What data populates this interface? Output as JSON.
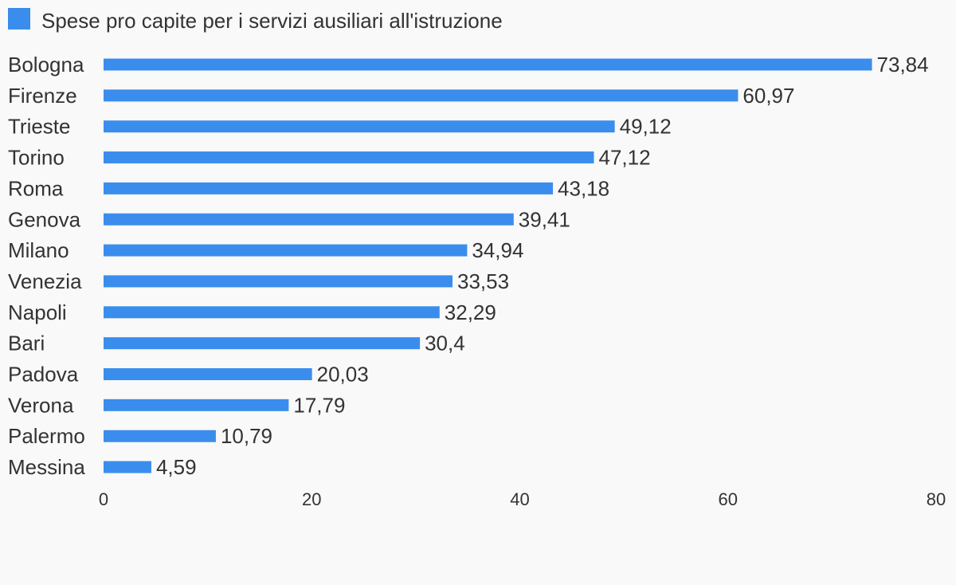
{
  "chart_data": {
    "type": "bar",
    "orientation": "horizontal",
    "categories": [
      "Bologna",
      "Firenze",
      "Trieste",
      "Torino",
      "Roma",
      "Genova",
      "Milano",
      "Venezia",
      "Napoli",
      "Bari",
      "Padova",
      "Verona",
      "Palermo",
      "Messina"
    ],
    "series": [
      {
        "name": "Spese pro capite per i servizi ausiliari all'istruzione",
        "values": [
          73.84,
          60.97,
          49.12,
          47.12,
          43.18,
          39.41,
          34.94,
          33.53,
          32.29,
          30.4,
          20.03,
          17.79,
          10.79,
          4.59
        ],
        "labels": [
          "73,84",
          "60,97",
          "49,12",
          "47,12",
          "43,18",
          "39,41",
          "34,94",
          "33,53",
          "32,29",
          "30,4",
          "20,03",
          "17,79",
          "10,79",
          "4,59"
        ],
        "color": "#3a8ded"
      }
    ],
    "xlim": [
      0,
      80
    ],
    "xticks": [
      0,
      20,
      40,
      60,
      80
    ],
    "xtick_labels": [
      "0",
      "20",
      "40",
      "60",
      "80"
    ],
    "grid": false,
    "legend_position": "top-left"
  },
  "colors": {
    "background": "#f9f9f9",
    "bar": "#3a8ded",
    "text": "#333333"
  }
}
